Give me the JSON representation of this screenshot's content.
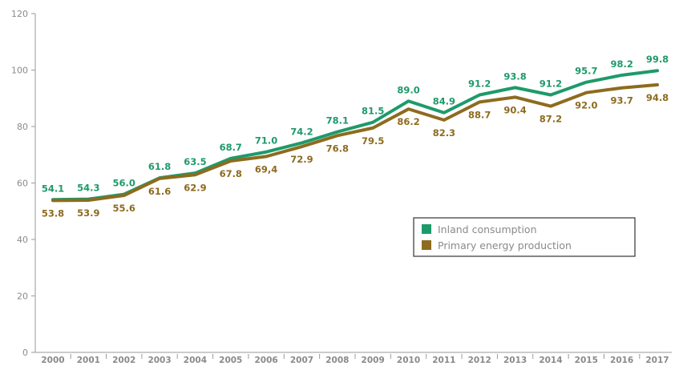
{
  "chart_data": {
    "type": "line",
    "title": "",
    "xlabel": "",
    "ylabel": "",
    "ylim": [
      0,
      120
    ],
    "yticks": [
      "0",
      "20",
      "40",
      "60",
      "80",
      "100",
      "120"
    ],
    "categories": [
      "2000",
      "2001",
      "2002",
      "2003",
      "2004",
      "2005",
      "2006",
      "2007",
      "2008",
      "2009",
      "2010",
      "2011",
      "2012",
      "2013",
      "2014",
      "2015",
      "2016",
      "2017"
    ],
    "series": [
      {
        "name": "Inland consumption",
        "color": "#1e9a6a",
        "values": [
          54.1,
          54.3,
          56.0,
          61.8,
          63.5,
          68.7,
          71.0,
          74.2,
          78.1,
          81.5,
          89.0,
          84.9,
          91.2,
          93.8,
          91.2,
          95.7,
          98.2,
          99.8
        ],
        "labels": [
          "54.1",
          "54.3",
          "56.0",
          "61.8",
          "63.5",
          "68.7",
          "71.0",
          "74.2",
          "78.1",
          "81.5",
          "89.0",
          "84.9",
          "91.2",
          "93.8",
          "91.2",
          "95.7",
          "98.2",
          "99.8"
        ]
      },
      {
        "name": "Primary energy production",
        "color": "#8d6b1f",
        "values": [
          53.8,
          53.9,
          55.6,
          61.6,
          62.9,
          67.8,
          69.4,
          72.9,
          76.8,
          79.5,
          86.2,
          82.3,
          88.7,
          90.4,
          87.2,
          92.0,
          93.7,
          94.8
        ],
        "labels": [
          "53.8",
          "53.9",
          "55.6",
          "61.6",
          "62.9",
          "67.8",
          "69,4",
          "72.9",
          "76.8",
          "79.5",
          "86.2",
          "82.3",
          "88.7",
          "90.4",
          "87.2",
          "92.0",
          "93.7",
          "94.8"
        ]
      }
    ],
    "grid": false,
    "legend": "center-right"
  }
}
